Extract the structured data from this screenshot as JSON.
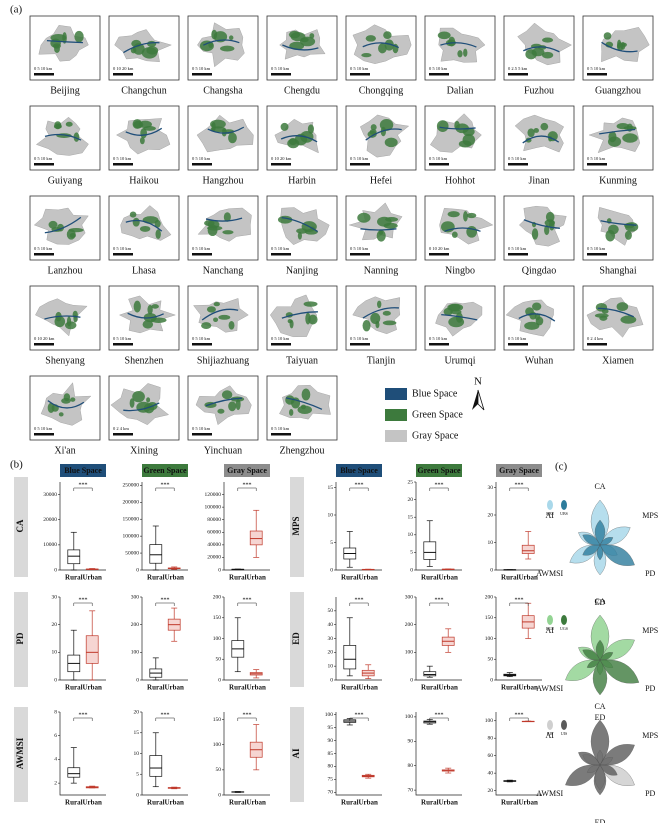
{
  "panel_a": {
    "label": "(a)",
    "north": "N",
    "legend": [
      {
        "name": "Blue Space",
        "color": "#1f4e79"
      },
      {
        "name": "Green Space",
        "color": "#3d7a3d"
      },
      {
        "name": "Gray Space",
        "color": "#c4c4c4"
      }
    ],
    "cities": [
      {
        "name": "Beijing",
        "scale": "0 5 10 km"
      },
      {
        "name": "Changchun",
        "scale": "0 10 20 km"
      },
      {
        "name": "Changsha",
        "scale": "0 5 10 km"
      },
      {
        "name": "Chengdu",
        "scale": "0 5 10 km"
      },
      {
        "name": "Chongqing",
        "scale": "0 5 10 km"
      },
      {
        "name": "Dalian",
        "scale": "0 5 10 km"
      },
      {
        "name": "Fuzhou",
        "scale": "0 2.5 5 km"
      },
      {
        "name": "Guangzhou",
        "scale": "0 5 10 km"
      },
      {
        "name": "Guiyang",
        "scale": "0 5 10 km"
      },
      {
        "name": "Haikou",
        "scale": "0 5 10 km"
      },
      {
        "name": "Hangzhou",
        "scale": "0 5 10 km"
      },
      {
        "name": "Harbin",
        "scale": "0 10 20 km"
      },
      {
        "name": "Hefei",
        "scale": "0 5 10 km"
      },
      {
        "name": "Hohhot",
        "scale": "0 5 10 km"
      },
      {
        "name": "Jinan",
        "scale": "0 5 10 km"
      },
      {
        "name": "Kunming",
        "scale": "0 5 10 km"
      },
      {
        "name": "Lanzhou",
        "scale": "0 5 10 km"
      },
      {
        "name": "Lhasa",
        "scale": "0 5 10 km"
      },
      {
        "name": "Nanchang",
        "scale": "0 5 10 km"
      },
      {
        "name": "Nanjing",
        "scale": "0 5 10 km"
      },
      {
        "name": "Nanning",
        "scale": "0 5 10 km"
      },
      {
        "name": "Ningbo",
        "scale": "0 10 20 km"
      },
      {
        "name": "Qingdao",
        "scale": "0 5 10 km"
      },
      {
        "name": "Shanghai",
        "scale": "0 5 10 km"
      },
      {
        "name": "Shenyang",
        "scale": "0 10 20 km"
      },
      {
        "name": "Shenzhen",
        "scale": "0 5 10 km"
      },
      {
        "name": "Shijiazhuang",
        "scale": "0 5 10 km"
      },
      {
        "name": "Taiyuan",
        "scale": "0 5 10 km"
      },
      {
        "name": "Tianjin",
        "scale": "0 5 10 km"
      },
      {
        "name": "Urumqi",
        "scale": "0 5 10 km"
      },
      {
        "name": "Wuhan",
        "scale": "0 5 10 km"
      },
      {
        "name": "Xiamen",
        "scale": "0 2 4 km"
      },
      {
        "name": "Xi'an",
        "scale": "0 5 10 km"
      },
      {
        "name": "Xining",
        "scale": "0 2 4 km"
      },
      {
        "name": "Yinchuan",
        "scale": "0 5 10 km"
      },
      {
        "name": "Zhengzhou",
        "scale": "0 5 10 km"
      }
    ]
  },
  "panel_b": {
    "label": "(b)",
    "groups": [
      "Rural",
      "Urban"
    ],
    "sig": "***",
    "spaces": [
      {
        "name": "Blue Space",
        "color": "#1f4e79"
      },
      {
        "name": "Green Space",
        "color": "#3d7a3d"
      },
      {
        "name": "Gray Space",
        "color": "#8c8c8c"
      }
    ],
    "metrics": [
      {
        "name": "CA",
        "plots": [
          {
            "ylim": [
              0,
              35000
            ],
            "yticks": [
              0,
              10000,
              20000,
              30000
            ],
            "rural": [
              0,
              2500,
              5500,
              8000,
              15000
            ],
            "urban": [
              100,
              200,
              300,
              400,
              600
            ]
          },
          {
            "ylim": [
              0,
              260000
            ],
            "yticks": [
              0,
              50000,
              100000,
              150000,
              200000,
              250000
            ],
            "rural": [
              0,
              20000,
              45000,
              75000,
              130000
            ],
            "urban": [
              2000,
              4000,
              5000,
              6000,
              9000
            ]
          },
          {
            "ylim": [
              0,
              140000
            ],
            "yticks": [
              0,
              20000,
              40000,
              60000,
              80000,
              100000,
              120000
            ],
            "rural": [
              500,
              800,
              1000,
              1200,
              1500
            ],
            "urban": [
              20000,
              40000,
              50000,
              62000,
              95000
            ]
          }
        ]
      },
      {
        "name": "PD",
        "plots": [
          {
            "ylim": [
              0,
              30
            ],
            "yticks": [
              0,
              10,
              20,
              30
            ],
            "rural": [
              0,
              3,
              6,
              9,
              18
            ],
            "urban": [
              0,
              6,
              10,
              16,
              25
            ]
          },
          {
            "ylim": [
              0,
              300
            ],
            "yticks": [
              0,
              100,
              200,
              300
            ],
            "rural": [
              0,
              10,
              25,
              40,
              80
            ],
            "urban": [
              140,
              180,
              200,
              220,
              260
            ]
          },
          {
            "ylim": [
              0,
              200
            ],
            "yticks": [
              0,
              50,
              100,
              150,
              200
            ],
            "rural": [
              20,
              55,
              75,
              95,
              150
            ],
            "urban": [
              5,
              12,
              15,
              18,
              25
            ]
          }
        ]
      },
      {
        "name": "AWMSI",
        "plots": [
          {
            "ylim": [
              1,
              8
            ],
            "yticks": [
              2,
              4,
              6,
              8
            ],
            "rural": [
              2,
              2.5,
              2.8,
              3.3,
              5
            ],
            "urban": [
              1.6,
              1.6,
              1.65,
              1.7,
              1.75
            ]
          },
          {
            "ylim": [
              0,
              20
            ],
            "yticks": [
              0,
              5,
              10,
              15,
              20
            ],
            "rural": [
              2,
              4.5,
              6.5,
              9.5,
              15
            ],
            "urban": [
              1.5,
              1.6,
              1.7,
              1.8,
              1.9
            ]
          },
          {
            "ylim": [
              0,
              165
            ],
            "yticks": [
              0,
              50,
              100,
              150
            ],
            "rural": [
              5,
              5.5,
              6,
              6.5,
              7
            ],
            "urban": [
              50,
              75,
              90,
              105,
              140
            ]
          }
        ]
      },
      {
        "name": "MPS",
        "plots": [
          {
            "ylim": [
              0,
              16
            ],
            "yticks": [
              0,
              5,
              10,
              15
            ],
            "rural": [
              0.5,
              2,
              3,
              4,
              7
            ],
            "urban": [
              0.05,
              0.08,
              0.1,
              0.12,
              0.15
            ]
          },
          {
            "ylim": [
              0,
              25
            ],
            "yticks": [
              0,
              5,
              10,
              15,
              20,
              25
            ],
            "rural": [
              1,
              3,
              5,
              8,
              14
            ],
            "urban": [
              0.1,
              0.15,
              0.2,
              0.25,
              0.3
            ]
          },
          {
            "ylim": [
              0,
              32
            ],
            "yticks": [
              0,
              10,
              20,
              30
            ],
            "rural": [
              0.05,
              0.08,
              0.1,
              0.12,
              0.15
            ],
            "urban": [
              4,
              6,
              7,
              9,
              14
            ]
          }
        ]
      },
      {
        "name": "ED",
        "plots": [
          {
            "ylim": [
              0,
              60
            ],
            "yticks": [
              0,
              10,
              20,
              30,
              40,
              50
            ],
            "rural": [
              3,
              8,
              15,
              25,
              45
            ],
            "urban": [
              1,
              3,
              5,
              7,
              11
            ]
          },
          {
            "ylim": [
              0,
              300
            ],
            "yticks": [
              0,
              100,
              200,
              300
            ],
            "rural": [
              10,
              15,
              20,
              30,
              50
            ],
            "urban": [
              100,
              125,
              140,
              155,
              185
            ]
          },
          {
            "ylim": [
              0,
              200
            ],
            "yticks": [
              0,
              50,
              100,
              150,
              200
            ],
            "rural": [
              8,
              10,
              12,
              14,
              18
            ],
            "urban": [
              100,
              125,
              140,
              155,
              185
            ]
          }
        ]
      },
      {
        "name": "AI",
        "plots": [
          {
            "ylim": [
              69,
              101
            ],
            "yticks": [
              70,
              75,
              80,
              85,
              90,
              95,
              100
            ],
            "rural": [
              96,
              97,
              97.5,
              98,
              98.5
            ],
            "urban": [
              75.5,
              76,
              76.3,
              76.6,
              77
            ]
          },
          {
            "ylim": [
              68,
              102
            ],
            "yticks": [
              70,
              80,
              90,
              100
            ],
            "rural": [
              97,
              97.5,
              98,
              98.3,
              99
            ],
            "urban": [
              77,
              77.8,
              78,
              78.3,
              79
            ]
          },
          {
            "ylim": [
              15,
              110
            ],
            "yticks": [
              20,
              40,
              60,
              80,
              100
            ],
            "rural": [
              30,
              30.5,
              31,
              31.5,
              32
            ],
            "urban": [
              99,
              99,
              99.2,
              99.4,
              99.6
            ]
          }
        ]
      }
    ]
  },
  "panel_c": {
    "label": "(c)",
    "axes": [
      "CA",
      "MPS",
      "PD",
      "ED",
      "AWMSI",
      "AI"
    ],
    "charts": [
      {
        "labels": [
          "RBS",
          "UBS"
        ],
        "colors": [
          "#a9d8ea",
          "#2d7c9c"
        ],
        "rural": [
          0.9,
          0.7,
          0.4,
          0.6,
          0.7,
          0.5
        ],
        "urban": [
          0.5,
          0.3,
          0.8,
          0.3,
          0.4,
          0.4
        ]
      },
      {
        "labels": [
          "RGS",
          "UGS"
        ],
        "colors": [
          "#93d493",
          "#3d7a3d"
        ],
        "rural": [
          0.9,
          0.8,
          0.3,
          0.3,
          0.8,
          0.5
        ],
        "urban": [
          0.4,
          0.3,
          0.9,
          0.7,
          0.3,
          0.4
        ]
      },
      {
        "labels": [
          "RIS",
          "UIS"
        ],
        "colors": [
          "#cfcfcf",
          "#5a5a5a"
        ],
        "rural": [
          0.3,
          0.3,
          0.8,
          0.5,
          0.3,
          0.4
        ],
        "urban": [
          0.9,
          0.8,
          0.4,
          0.6,
          0.8,
          0.5
        ]
      }
    ]
  }
}
